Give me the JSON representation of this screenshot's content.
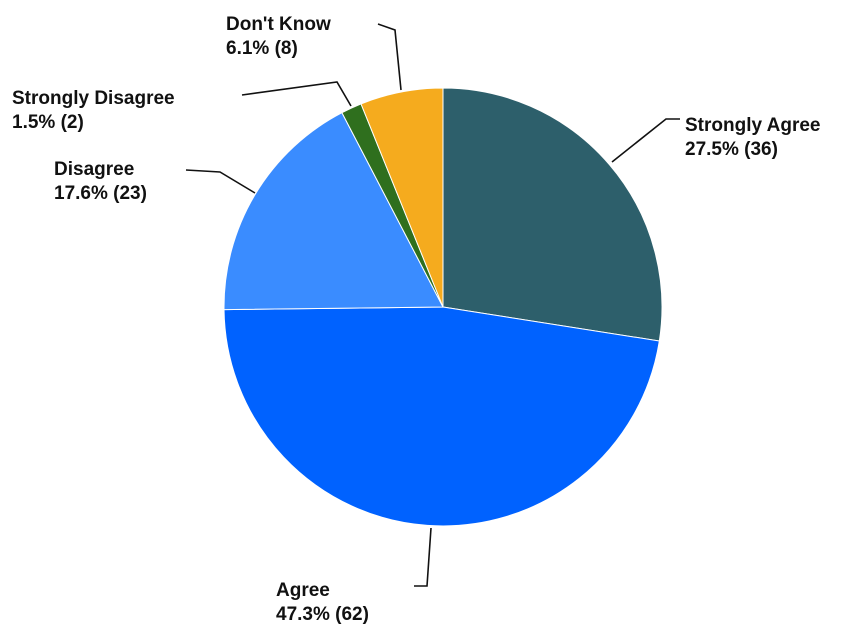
{
  "chart_data": {
    "type": "pie",
    "start_angle_deg": 0,
    "direction": "clockwise",
    "slices": [
      {
        "label": "Strongly Agree",
        "value": 36,
        "percent": "27.5%",
        "display": "27.5% (36)",
        "color": "#2d5f6b"
      },
      {
        "label": "Agree",
        "value": 62,
        "percent": "47.3%",
        "display": "47.3% (62)",
        "color": "#0062ff"
      },
      {
        "label": "Disagree",
        "value": 23,
        "percent": "17.6%",
        "display": "17.6% (23)",
        "color": "#3a8cff"
      },
      {
        "label": "Strongly Disagree",
        "value": 2,
        "percent": "1.5%",
        "display": "1.5% (2)",
        "color": "#2f6f1e"
      },
      {
        "label": "Don't Know",
        "value": 8,
        "percent": "6.1%",
        "display": "6.1% (8)",
        "color": "#f5ab1e"
      }
    ],
    "legend": "none"
  }
}
